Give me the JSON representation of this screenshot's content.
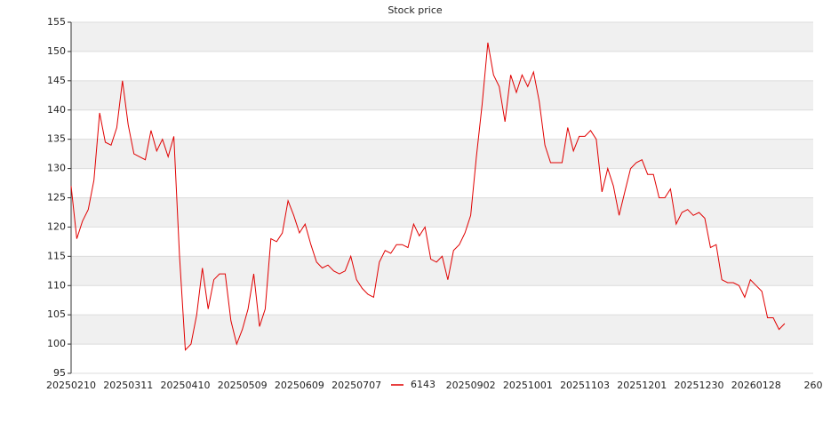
{
  "chart_data": {
    "type": "line",
    "title": "Stock price",
    "categories": [
      "20250210",
      null,
      null,
      null,
      null,
      null,
      null,
      null,
      null,
      null,
      "20250311",
      null,
      null,
      null,
      null,
      null,
      null,
      null,
      null,
      null,
      "20250410",
      null,
      null,
      null,
      null,
      null,
      null,
      null,
      null,
      null,
      "20250509",
      null,
      null,
      null,
      null,
      null,
      null,
      null,
      null,
      null,
      "20250609",
      null,
      null,
      null,
      null,
      null,
      null,
      null,
      null,
      null,
      "20250707",
      null,
      null,
      null,
      null,
      null,
      null,
      null,
      null,
      null,
      null,
      null,
      null,
      null,
      null,
      null,
      null,
      null,
      null,
      null,
      "20250902",
      null,
      null,
      null,
      null,
      null,
      null,
      null,
      null,
      null,
      "20251001",
      null,
      null,
      null,
      null,
      null,
      null,
      null,
      null,
      null,
      "20251103",
      null,
      null,
      null,
      null,
      null,
      null,
      null,
      null,
      null,
      "20251201",
      null,
      null,
      null,
      null,
      null,
      null,
      null,
      null,
      null,
      "20251230",
      null,
      null,
      null,
      null,
      null,
      null,
      null,
      null,
      null,
      "20260128",
      null,
      null,
      null,
      null,
      null,
      null,
      null,
      null,
      null,
      "260"
    ],
    "series": [
      {
        "name": "6143",
        "color": "#e00000",
        "values": [
          127,
          118,
          121,
          123,
          128,
          139.5,
          134.5,
          134,
          137,
          145,
          137.5,
          132.5,
          132,
          131.5,
          136.5,
          133,
          135,
          132,
          135.5,
          115,
          99,
          100,
          105,
          113,
          106,
          111,
          112,
          112,
          104,
          100,
          102.5,
          106,
          112,
          103,
          106,
          118,
          117.5,
          119,
          124.5,
          122,
          119,
          120.5,
          117,
          114,
          113,
          113.5,
          112.5,
          112,
          112.5,
          115,
          111,
          109.5,
          108.5,
          108,
          114,
          116,
          115.5,
          117,
          117,
          116.5,
          120.5,
          118.5,
          120,
          114.5,
          114,
          115,
          111,
          116,
          117,
          119,
          122,
          132,
          141,
          151.5,
          146,
          144,
          138,
          146,
          143,
          146,
          144,
          146.5,
          141.5,
          134,
          131,
          131,
          131,
          137,
          133,
          135.5,
          135.5,
          136.5,
          135,
          126,
          130,
          127,
          122,
          126,
          130,
          131,
          131.5,
          129,
          129,
          125,
          125,
          126.5,
          120.5,
          122.5,
          123,
          122,
          122.5,
          121.5,
          116.5,
          117,
          111,
          110.5,
          110.5,
          110,
          108,
          111,
          110,
          109,
          104.5,
          104.5,
          102.5,
          103.5,
          null,
          null,
          null,
          null,
          null
        ]
      }
    ],
    "ylim": [
      95,
      155
    ],
    "yticks": [
      95,
      100,
      105,
      110,
      115,
      120,
      125,
      130,
      135,
      140,
      145,
      150,
      155
    ],
    "grid": true
  }
}
